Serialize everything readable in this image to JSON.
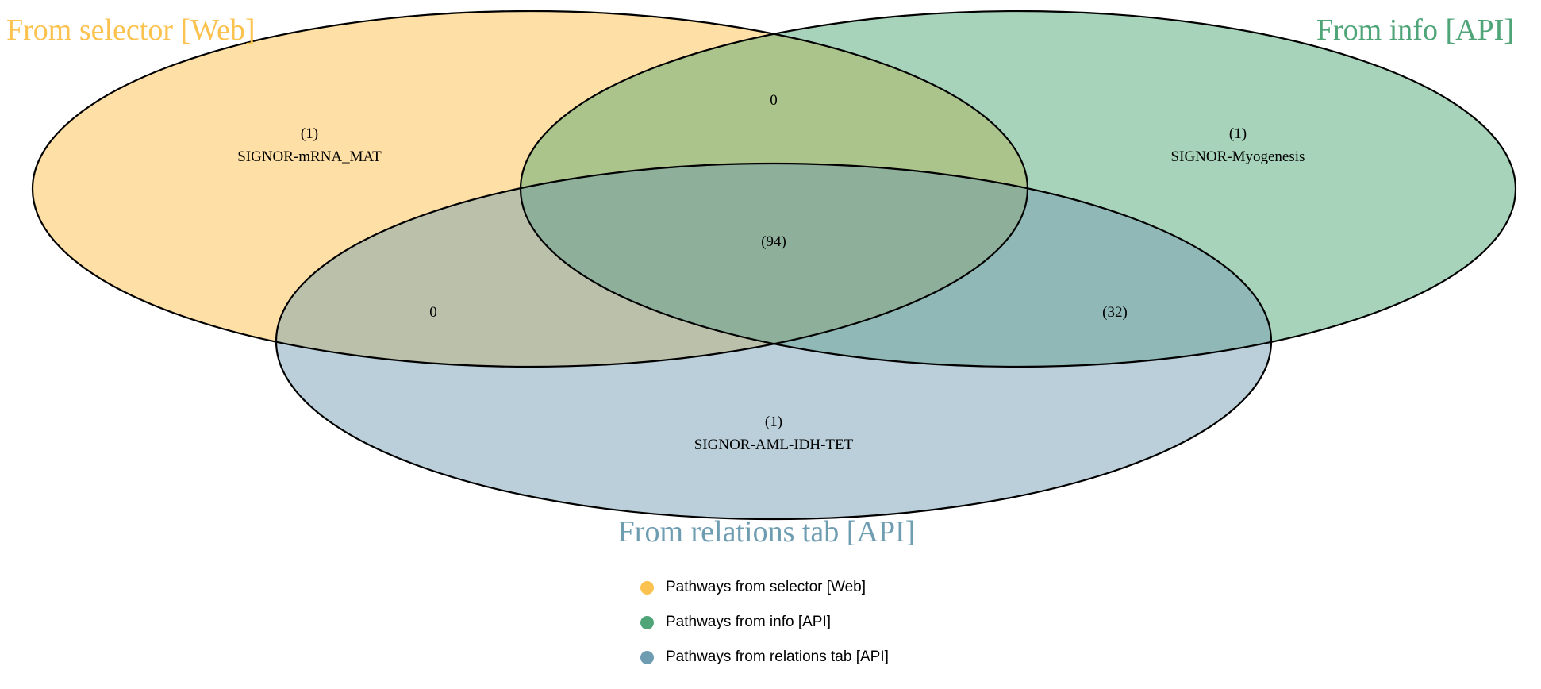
{
  "sets": [
    {
      "title": "From selector [Web]",
      "color": "#fcc24f",
      "fill": "#fedfa5"
    },
    {
      "title": "From info [API]",
      "color": "#4fa478",
      "fill": "#a7d3bb"
    },
    {
      "title": "From relations tab [API]",
      "color": "#6e9db2",
      "fill": "#bacfd9"
    }
  ],
  "regions": {
    "selector_only": {
      "count": "(1)",
      "item": "SIGNOR-mRNA_MAT"
    },
    "info_only": {
      "count": "(1)",
      "item": "SIGNOR-Myogenesis"
    },
    "relations_only": {
      "count": "(1)",
      "item": "SIGNOR-AML-IDH-TET"
    },
    "selector_info": {
      "count": "0"
    },
    "selector_relations": {
      "count": "0"
    },
    "info_relations": {
      "count": "(32)"
    },
    "all_three": {
      "count": "(94)"
    }
  },
  "legend": [
    {
      "label": "Pathways from selector [Web]",
      "color": "#fcc24f"
    },
    {
      "label": "Pathways from info [API]",
      "color": "#4fa478"
    },
    {
      "label": "Pathways from relations tab [API]",
      "color": "#6e9db2"
    }
  ]
}
